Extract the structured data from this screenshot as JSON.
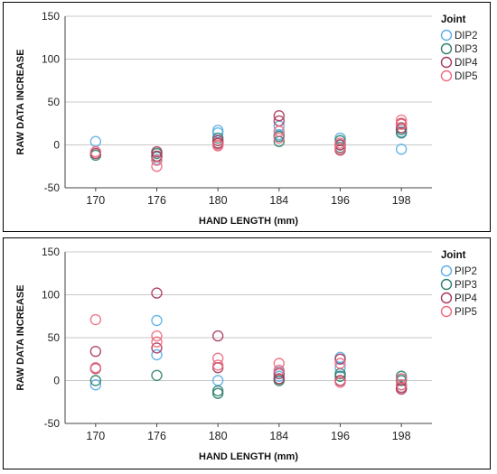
{
  "chart_data": [
    {
      "type": "scatter",
      "xlabel": "HAND LENGTH (mm)",
      "ylabel": "RAW DATA INCREASE",
      "categories": [
        "170",
        "176",
        "180",
        "184",
        "196",
        "198"
      ],
      "ylim": [
        -50,
        150
      ],
      "yticks": [
        -50,
        0,
        50,
        100,
        150
      ],
      "grid": "horizontal",
      "legend_title": "Joint",
      "legend_position": "right",
      "series": [
        {
          "name": "DIP2",
          "color": "#5aaee6",
          "points": [
            [
              0,
              4
            ],
            [
              1,
              -17
            ],
            [
              2,
              17
            ],
            [
              2,
              14
            ],
            [
              3,
              22
            ],
            [
              3,
              12
            ],
            [
              4,
              8
            ],
            [
              4,
              0
            ],
            [
              5,
              15
            ],
            [
              5,
              -5
            ]
          ]
        },
        {
          "name": "DIP3",
          "color": "#2e7f6e",
          "points": [
            [
              0,
              -12
            ],
            [
              1,
              -10
            ],
            [
              1,
              -14
            ],
            [
              2,
              2
            ],
            [
              2,
              8
            ],
            [
              3,
              4
            ],
            [
              3,
              10
            ],
            [
              4,
              -3
            ],
            [
              4,
              5
            ],
            [
              5,
              18
            ],
            [
              5,
              14
            ]
          ]
        },
        {
          "name": "DIP4",
          "color": "#a8375a",
          "points": [
            [
              0,
              -10
            ],
            [
              1,
              -13
            ],
            [
              1,
              -8
            ],
            [
              2,
              2
            ],
            [
              2,
              5
            ],
            [
              3,
              34
            ],
            [
              3,
              28
            ],
            [
              4,
              -6
            ],
            [
              4,
              0
            ],
            [
              5,
              25
            ],
            [
              5,
              20
            ]
          ]
        },
        {
          "name": "DIP5",
          "color": "#ee6a7e",
          "points": [
            [
              0,
              -8
            ],
            [
              1,
              -18
            ],
            [
              1,
              -25
            ],
            [
              2,
              -1
            ],
            [
              2,
              0
            ],
            [
              3,
              16
            ],
            [
              3,
              8
            ],
            [
              4,
              -4
            ],
            [
              4,
              2
            ],
            [
              5,
              29
            ],
            [
              5,
              24
            ]
          ]
        }
      ]
    },
    {
      "type": "scatter",
      "xlabel": "HAND LENGTH (mm)",
      "ylabel": "RAW DATA INCREASE",
      "categories": [
        "170",
        "176",
        "180",
        "184",
        "196",
        "198"
      ],
      "ylim": [
        -50,
        150
      ],
      "yticks": [
        -50,
        0,
        50,
        100,
        150
      ],
      "grid": "horizontal",
      "legend_title": "Joint",
      "legend_position": "right",
      "series": [
        {
          "name": "PIP2",
          "color": "#5aaee6",
          "points": [
            [
              0,
              -5
            ],
            [
              1,
              70
            ],
            [
              1,
              30
            ],
            [
              2,
              0
            ],
            [
              3,
              10
            ],
            [
              3,
              5
            ],
            [
              4,
              27
            ],
            [
              4,
              15
            ],
            [
              5,
              -5
            ],
            [
              5,
              2
            ]
          ]
        },
        {
          "name": "PIP3",
          "color": "#2e7f6e",
          "points": [
            [
              0,
              0
            ],
            [
              1,
              6
            ],
            [
              2,
              -15
            ],
            [
              2,
              -12
            ],
            [
              3,
              0
            ],
            [
              3,
              2
            ],
            [
              4,
              5
            ],
            [
              4,
              8
            ],
            [
              5,
              5
            ],
            [
              5,
              0
            ]
          ]
        },
        {
          "name": "PIP4",
          "color": "#a8375a",
          "points": [
            [
              0,
              34
            ],
            [
              0,
              14
            ],
            [
              1,
              102
            ],
            [
              1,
              38
            ],
            [
              2,
              52
            ],
            [
              2,
              15
            ],
            [
              3,
              8
            ],
            [
              3,
              2
            ],
            [
              4,
              25
            ],
            [
              4,
              0
            ],
            [
              5,
              -8
            ],
            [
              5,
              -10
            ]
          ]
        },
        {
          "name": "PIP5",
          "color": "#ee6a7e",
          "points": [
            [
              0,
              71
            ],
            [
              0,
              15
            ],
            [
              1,
              52
            ],
            [
              1,
              45
            ],
            [
              2,
              26
            ],
            [
              2,
              18
            ],
            [
              3,
              20
            ],
            [
              3,
              12
            ],
            [
              4,
              20
            ],
            [
              4,
              -2
            ],
            [
              5,
              2
            ],
            [
              5,
              -5
            ]
          ]
        }
      ]
    }
  ]
}
